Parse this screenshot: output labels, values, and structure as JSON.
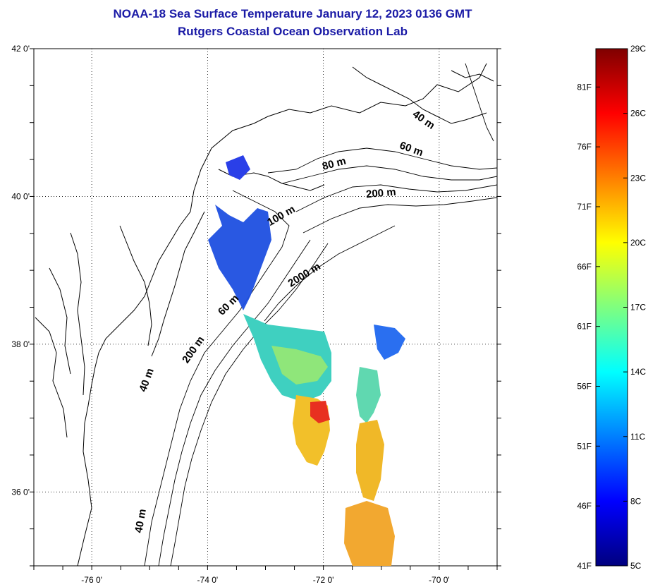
{
  "title_line1": "NOAA-18 Sea Surface Temperature January 12, 2023 0136 GMT",
  "title_line2": "Rutgers Coastal Ocean Observation Lab",
  "map": {
    "lon_range": [
      -77,
      -69
    ],
    "lat_range": [
      35,
      42
    ],
    "grid": "dotted",
    "lon_ticks": [
      {
        "value": -76,
        "label": "-76 0'"
      },
      {
        "value": -74,
        "label": "-74 0'"
      },
      {
        "value": -72,
        "label": "-72 0'"
      },
      {
        "value": -70,
        "label": "-70 0'"
      }
    ],
    "lat_ticks": [
      {
        "value": 42,
        "label": "42 0'"
      },
      {
        "value": 40,
        "label": "40 0'"
      },
      {
        "value": 38,
        "label": "38 0'"
      },
      {
        "value": 36,
        "label": "36 0'"
      }
    ],
    "depth_labels": [
      {
        "text": "40 m",
        "lon": -70.3,
        "lat": 41.0,
        "angle": 35
      },
      {
        "text": "60 m",
        "lon": -70.5,
        "lat": 40.6,
        "angle": 20
      },
      {
        "text": "80 m",
        "lon": -71.8,
        "lat": 40.4,
        "angle": -15
      },
      {
        "text": "200 m",
        "lon": -71.0,
        "lat": 40.0,
        "angle": -5
      },
      {
        "text": "100 m",
        "lon": -72.7,
        "lat": 39.7,
        "angle": -30
      },
      {
        "text": "2000 m",
        "lon": -72.3,
        "lat": 38.9,
        "angle": -32
      },
      {
        "text": "60 m",
        "lon": -73.6,
        "lat": 38.5,
        "angle": -45
      },
      {
        "text": "200 m",
        "lon": -74.2,
        "lat": 37.9,
        "angle": -55
      },
      {
        "text": "40 m",
        "lon": -75.0,
        "lat": 37.5,
        "angle": -70
      },
      {
        "text": "40 m",
        "lon": -75.1,
        "lat": 35.6,
        "angle": -80
      }
    ]
  },
  "colorbar": {
    "min_c": 5,
    "max_c": 29,
    "celsius_labels": [
      {
        "value": 29,
        "label": "29C"
      },
      {
        "value": 26,
        "label": "26C"
      },
      {
        "value": 23,
        "label": "23C"
      },
      {
        "value": 20,
        "label": "20C"
      },
      {
        "value": 17,
        "label": "17C"
      },
      {
        "value": 14,
        "label": "14C"
      },
      {
        "value": 11,
        "label": "11C"
      },
      {
        "value": 8,
        "label": "8C"
      },
      {
        "value": 5,
        "label": "5C"
      }
    ],
    "fahrenheit_labels": [
      {
        "value": 81,
        "label": "81F"
      },
      {
        "value": 76,
        "label": "76F"
      },
      {
        "value": 71,
        "label": "71F"
      },
      {
        "value": 66,
        "label": "66F"
      },
      {
        "value": 61,
        "label": "61F"
      },
      {
        "value": 56,
        "label": "56F"
      },
      {
        "value": 51,
        "label": "51F"
      },
      {
        "value": 46,
        "label": "46F"
      },
      {
        "value": 41,
        "label": "41F"
      }
    ],
    "stops": [
      "#00007f",
      "#0000ff",
      "#007fff",
      "#00ffff",
      "#7fff7f",
      "#ffff00",
      "#ff7f00",
      "#ff0000",
      "#7f0000"
    ]
  }
}
